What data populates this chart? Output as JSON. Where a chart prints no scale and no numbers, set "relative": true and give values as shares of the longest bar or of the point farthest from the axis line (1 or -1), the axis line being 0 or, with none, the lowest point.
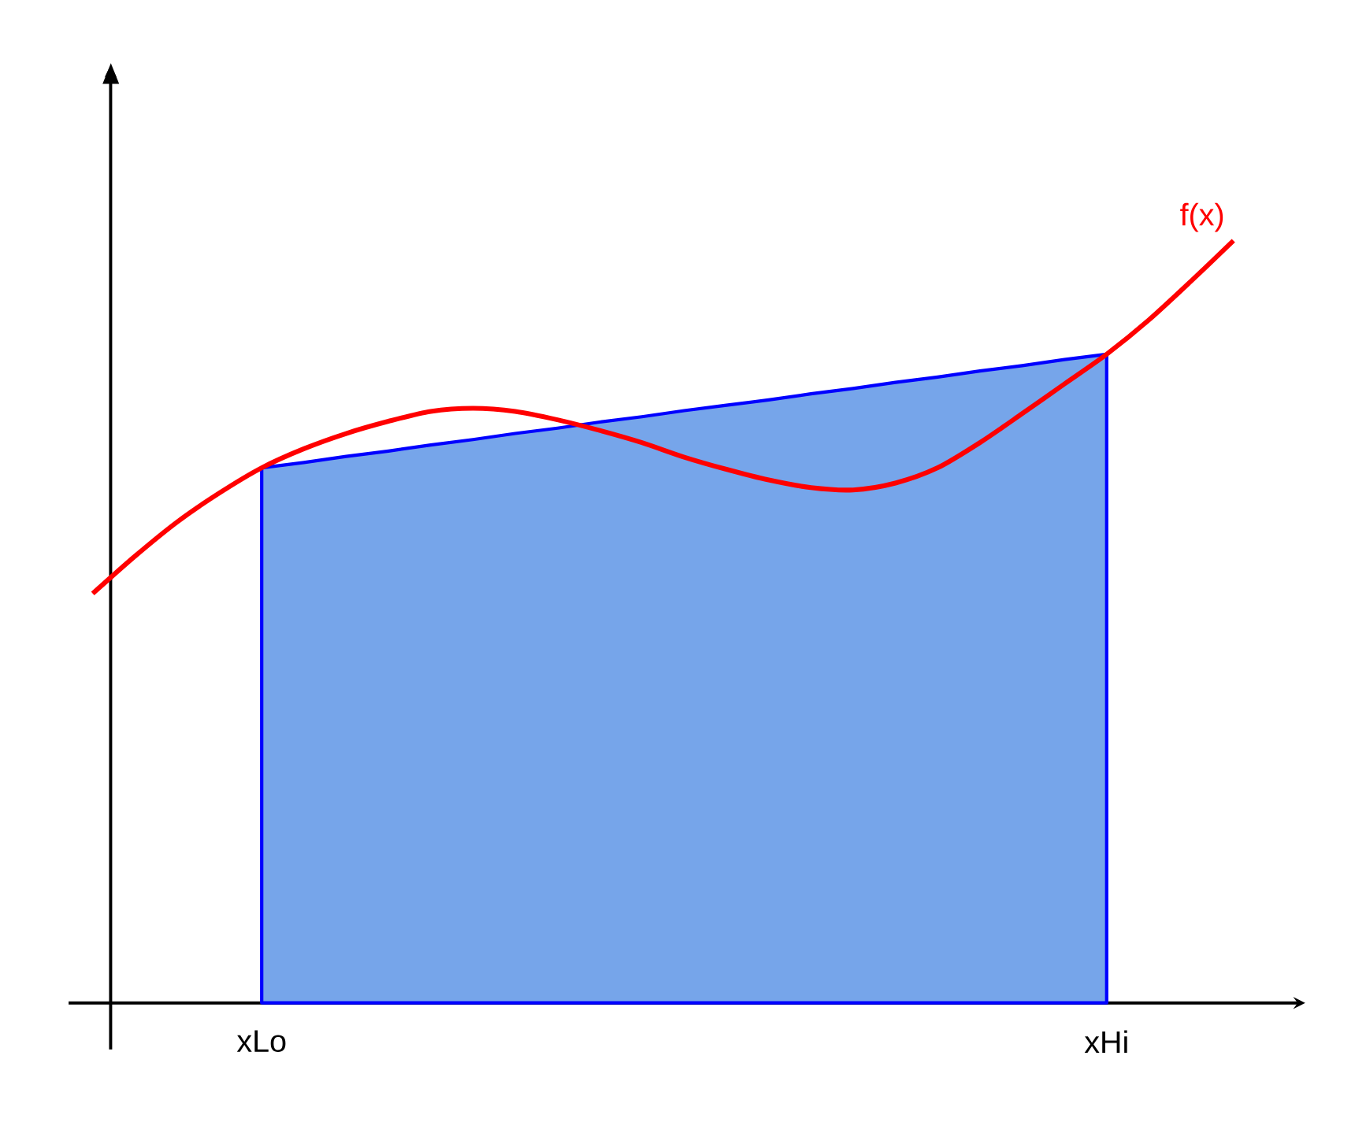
{
  "chart_data": {
    "type": "line",
    "relative": true,
    "categories": [
      null,
      null,
      null,
      null,
      "xLo",
      null,
      null,
      null,
      null,
      null,
      null,
      null,
      null,
      null,
      null,
      null,
      null,
      null,
      null,
      null,
      null,
      null,
      null,
      null,
      "xHi",
      null,
      null,
      null
    ],
    "series": [
      {
        "type": "area",
        "color": "#76a5ea",
        "values": [
          null,
          null,
          null,
          null,
          0.702,
          0.709,
          0.717,
          0.724,
          0.732,
          0.739,
          0.747,
          0.754,
          0.762,
          0.769,
          0.777,
          0.784,
          0.791,
          0.799,
          0.806,
          0.814,
          0.821,
          0.829,
          0.836,
          0.844,
          0.851,
          null,
          null,
          null
        ]
      },
      {
        "type": "line",
        "name": "f(x)",
        "color": "#ff0000",
        "values": [
          0.537,
          0.586,
          0.631,
          0.669,
          0.702,
          0.727,
          0.747,
          0.763,
          0.776,
          0.78,
          0.776,
          0.765,
          0.751,
          0.735,
          0.716,
          0.7,
          0.686,
          0.676,
          0.673,
          0.682,
          0.702,
          0.735,
          0.773,
          0.812,
          0.851,
          0.896,
          0.947,
          1
        ]
      }
    ]
  }
}
